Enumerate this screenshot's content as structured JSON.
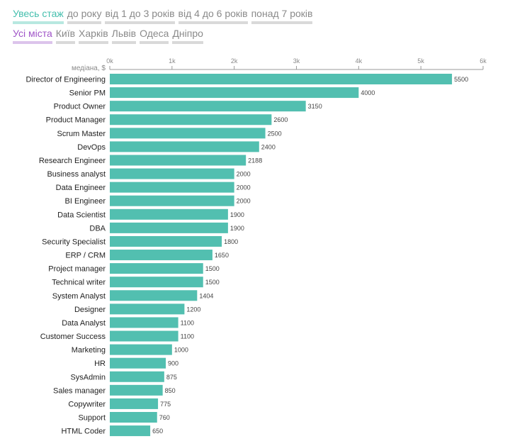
{
  "filters": {
    "experience": {
      "selected": 0,
      "items": [
        "Увесь стаж",
        "до року",
        "від 1 до 3 років",
        "від 4 до 6 років",
        "понад 7 років"
      ]
    },
    "cities": {
      "selected": 0,
      "items": [
        "Усі міста",
        "Київ",
        "Харків",
        "Львів",
        "Одеса",
        "Дніпро"
      ]
    }
  },
  "colors": {
    "bar": "#52bfb0",
    "accent_teal": "#45bfae",
    "accent_purple": "#a055c8",
    "inactive_text": "#8a8a8a",
    "inactive_underline": "#d9d9d9"
  },
  "chart_data": {
    "type": "bar",
    "orientation": "horizontal",
    "title": "",
    "xlabel": "медіана, $",
    "xlim": [
      0,
      6000
    ],
    "ticks": [
      0,
      1000,
      2000,
      3000,
      4000,
      5000,
      6000
    ],
    "tick_labels": [
      "0k",
      "1k",
      "2k",
      "3k",
      "4k",
      "5k",
      "6k"
    ],
    "grid": false,
    "categories": [
      "Director of Engineering",
      "Senior PM",
      "Product Owner",
      "Product Manager",
      "Scrum Master",
      "DevOps",
      "Research Engineer",
      "Business analyst",
      "Data Engineer",
      "BI Engineer",
      "Data Scientist",
      "DBA",
      "Security Specialist",
      "ERP / CRM",
      "Project manager",
      "Technical writer",
      "System Analyst",
      "Designer",
      "Data Analyst",
      "Customer Success",
      "Marketing",
      "HR",
      "SysAdmin",
      "Sales manager",
      "Copywriter",
      "Support",
      "HTML Coder"
    ],
    "values": [
      5500,
      4000,
      3150,
      2600,
      2500,
      2400,
      2188,
      2000,
      2000,
      2000,
      1900,
      1900,
      1800,
      1650,
      1500,
      1500,
      1404,
      1200,
      1100,
      1100,
      1000,
      900,
      875,
      850,
      775,
      760,
      650
    ]
  }
}
